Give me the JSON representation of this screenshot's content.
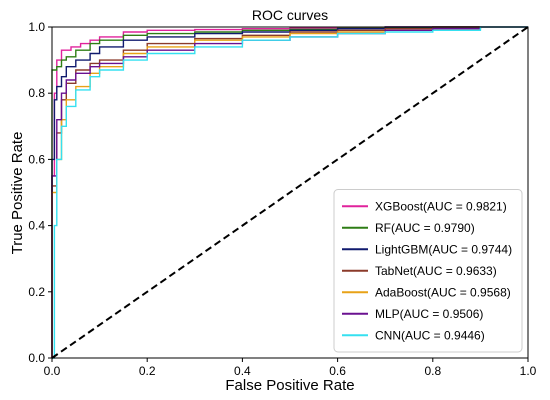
{
  "chart_data": {
    "type": "line",
    "title": "ROC curves",
    "xlabel": "False Positive Rate",
    "ylabel": "True Positive Rate",
    "xlim": [
      0.0,
      1.0
    ],
    "ylim": [
      0.0,
      1.0
    ],
    "xticks": [
      "0.0",
      "0.2",
      "0.4",
      "0.6",
      "0.8",
      "1.0"
    ],
    "yticks": [
      "0.0",
      "0.2",
      "0.4",
      "0.6",
      "0.8",
      "1.0"
    ],
    "grid": false,
    "legend_position": "lower-right",
    "diagonal": {
      "style": "dashed",
      "color": "#000000",
      "x": [
        0,
        1
      ],
      "y": [
        0,
        1
      ]
    },
    "series": [
      {
        "name": "XGBoost(AUC = 0.9821)",
        "color": "#e0229c",
        "x": [
          0,
          0,
          0.005,
          0.01,
          0.02,
          0.04,
          0.06,
          0.08,
          0.1,
          0.15,
          0.2,
          0.3,
          0.4,
          0.5,
          0.6,
          0.7,
          0.8,
          0.9,
          1.0
        ],
        "y": [
          0,
          0.55,
          0.8,
          0.9,
          0.93,
          0.94,
          0.95,
          0.96,
          0.97,
          0.985,
          0.99,
          0.992,
          0.995,
          0.997,
          0.998,
          1.0,
          1.0,
          1.0,
          1.0
        ]
      },
      {
        "name": "RF(AUC = 0.9790)",
        "color": "#2e7d15",
        "x": [
          0,
          0,
          0.01,
          0.02,
          0.03,
          0.05,
          0.08,
          0.1,
          0.15,
          0.2,
          0.3,
          0.4,
          0.5,
          0.6,
          0.7,
          0.8,
          0.9,
          1.0
        ],
        "y": [
          0,
          0.87,
          0.88,
          0.9,
          0.91,
          0.93,
          0.95,
          0.96,
          0.975,
          0.98,
          0.985,
          0.99,
          0.993,
          0.996,
          0.998,
          1.0,
          1.0,
          1.0
        ]
      },
      {
        "name": "LightGBM(AUC = 0.9744)",
        "color": "#101a6e",
        "x": [
          0,
          0,
          0.005,
          0.01,
          0.02,
          0.03,
          0.05,
          0.08,
          0.1,
          0.15,
          0.2,
          0.3,
          0.4,
          0.5,
          0.6,
          0.7,
          0.8,
          0.9,
          1.0
        ],
        "y": [
          0,
          0.6,
          0.78,
          0.82,
          0.85,
          0.88,
          0.9,
          0.92,
          0.94,
          0.96,
          0.97,
          0.98,
          0.985,
          0.99,
          0.995,
          1.0,
          1.0,
          1.0,
          1.0
        ]
      },
      {
        "name": "TabNet(AUC = 0.9633)",
        "color": "#8b3a2a",
        "x": [
          0,
          0,
          0.01,
          0.02,
          0.03,
          0.05,
          0.08,
          0.1,
          0.15,
          0.2,
          0.3,
          0.4,
          0.5,
          0.6,
          0.7,
          0.8,
          0.9,
          1.0
        ],
        "y": [
          0,
          0.52,
          0.68,
          0.78,
          0.83,
          0.87,
          0.89,
          0.9,
          0.93,
          0.95,
          0.965,
          0.975,
          0.985,
          0.99,
          0.995,
          1.0,
          1.0,
          1.0
        ]
      },
      {
        "name": "AdaBoost(AUC = 0.9568)",
        "color": "#e8a217",
        "x": [
          0,
          0,
          0.01,
          0.02,
          0.03,
          0.05,
          0.08,
          0.1,
          0.15,
          0.2,
          0.3,
          0.4,
          0.5,
          0.6,
          0.7,
          0.8,
          0.9,
          1.0
        ],
        "y": [
          0,
          0.5,
          0.6,
          0.72,
          0.78,
          0.82,
          0.86,
          0.88,
          0.92,
          0.94,
          0.96,
          0.97,
          0.98,
          0.985,
          0.99,
          0.995,
          1.0,
          1.0
        ]
      },
      {
        "name": "MLP(AUC = 0.9506)",
        "color": "#6a1190",
        "x": [
          0,
          0,
          0.01,
          0.02,
          0.03,
          0.05,
          0.08,
          0.1,
          0.15,
          0.2,
          0.3,
          0.4,
          0.5,
          0.6,
          0.7,
          0.8,
          0.9,
          1.0
        ],
        "y": [
          0,
          0.55,
          0.72,
          0.8,
          0.84,
          0.86,
          0.88,
          0.89,
          0.91,
          0.93,
          0.95,
          0.96,
          0.97,
          0.98,
          0.99,
          0.995,
          1.0,
          1.0
        ]
      },
      {
        "name": "CNN(AUC = 0.9446)",
        "color": "#35e0f0",
        "x": [
          0,
          0.005,
          0.01,
          0.02,
          0.03,
          0.05,
          0.08,
          0.1,
          0.15,
          0.2,
          0.3,
          0.4,
          0.5,
          0.6,
          0.7,
          0.8,
          0.9,
          1.0
        ],
        "y": [
          0,
          0.4,
          0.6,
          0.7,
          0.76,
          0.81,
          0.85,
          0.87,
          0.9,
          0.92,
          0.94,
          0.96,
          0.97,
          0.98,
          0.985,
          0.99,
          1.0,
          1.0
        ]
      }
    ]
  }
}
